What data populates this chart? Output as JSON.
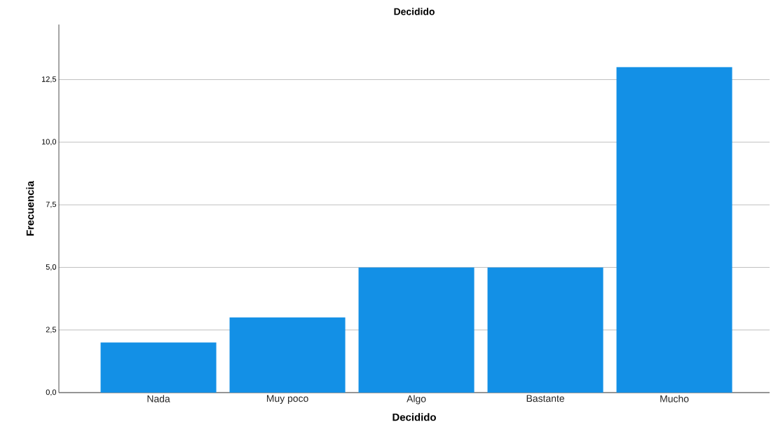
{
  "chart_data": {
    "type": "bar",
    "title": "Decidido",
    "xlabel": "Decidido",
    "ylabel": "Frecuencia",
    "categories": [
      "Nada",
      "Muy poco",
      "Algo",
      "Bastante",
      "Mucho"
    ],
    "values": [
      2,
      3,
      5,
      5,
      13
    ],
    "color": "#1390e6",
    "ylim": [
      0,
      14.7
    ],
    "yticks": [
      {
        "value": 0,
        "label": "0,0"
      },
      {
        "value": 2.5,
        "label": "2,5"
      },
      {
        "value": 5,
        "label": "5,0"
      },
      {
        "value": 7.5,
        "label": "7,5"
      },
      {
        "value": 10,
        "label": "10,0"
      },
      {
        "value": 12.5,
        "label": "12,5"
      }
    ],
    "grid": "y"
  }
}
